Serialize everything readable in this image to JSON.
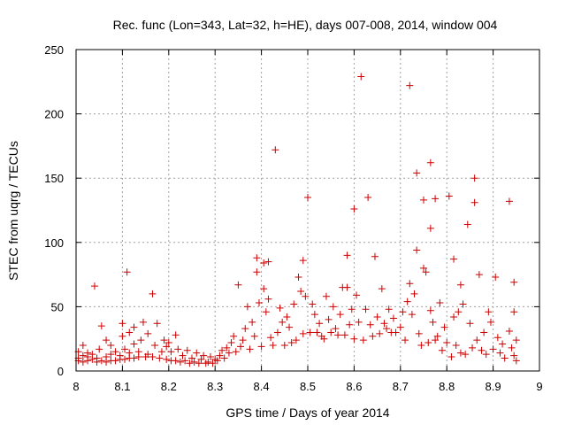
{
  "chart_data": {
    "type": "scatter",
    "title": "Rec. func (Lon=343, Lat=32, h=HE), days 007-008, 2014, window 004",
    "xlabel": "GPS time / Days of year 2014",
    "ylabel": "STEC from uqrg / TECUs",
    "xlim": [
      8.0,
      9.0
    ],
    "ylim": [
      0,
      250
    ],
    "xticks": [
      "8",
      "8.1",
      "8.2",
      "8.3",
      "8.4",
      "8.5",
      "8.6",
      "8.7",
      "8.8",
      "8.9",
      "9"
    ],
    "yticks": [
      "0",
      "50",
      "100",
      "150",
      "200",
      "250"
    ],
    "grid": true,
    "marker": "plus",
    "series_color": "#cc0000",
    "points": [
      [
        8.005,
        8
      ],
      [
        8.005,
        10
      ],
      [
        8.005,
        15
      ],
      [
        8.015,
        7
      ],
      [
        8.015,
        12
      ],
      [
        8.015,
        20
      ],
      [
        8.025,
        8
      ],
      [
        8.025,
        11
      ],
      [
        8.025,
        14
      ],
      [
        8.035,
        9
      ],
      [
        8.035,
        13
      ],
      [
        8.04,
        66
      ],
      [
        8.045,
        7
      ],
      [
        8.045,
        10
      ],
      [
        8.05,
        17
      ],
      [
        8.055,
        8
      ],
      [
        8.055,
        35
      ],
      [
        8.065,
        7
      ],
      [
        8.065,
        11
      ],
      [
        8.065,
        24
      ],
      [
        8.075,
        8
      ],
      [
        8.075,
        13
      ],
      [
        8.075,
        20
      ],
      [
        8.085,
        8
      ],
      [
        8.085,
        15
      ],
      [
        8.095,
        9
      ],
      [
        8.095,
        12
      ],
      [
        8.1,
        27
      ],
      [
        8.1,
        37
      ],
      [
        8.105,
        9
      ],
      [
        8.105,
        17
      ],
      [
        8.11,
        77
      ],
      [
        8.115,
        10
      ],
      [
        8.115,
        14
      ],
      [
        8.115,
        30
      ],
      [
        8.125,
        10
      ],
      [
        8.125,
        21
      ],
      [
        8.125,
        34
      ],
      [
        8.135,
        11
      ],
      [
        8.135,
        15
      ],
      [
        8.14,
        24
      ],
      [
        8.145,
        38
      ],
      [
        8.15,
        11
      ],
      [
        8.155,
        13
      ],
      [
        8.155,
        29
      ],
      [
        8.165,
        60
      ],
      [
        8.165,
        11
      ],
      [
        8.17,
        20
      ],
      [
        8.175,
        37
      ],
      [
        8.18,
        10
      ],
      [
        8.185,
        15
      ],
      [
        8.19,
        24
      ],
      [
        8.195,
        9
      ],
      [
        8.195,
        19
      ],
      [
        8.2,
        22
      ],
      [
        8.205,
        8
      ],
      [
        8.205,
        15
      ],
      [
        8.215,
        8
      ],
      [
        8.215,
        28
      ],
      [
        8.22,
        17
      ],
      [
        8.225,
        7
      ],
      [
        8.23,
        12
      ],
      [
        8.235,
        8
      ],
      [
        8.24,
        16
      ],
      [
        8.245,
        6
      ],
      [
        8.25,
        10
      ],
      [
        8.255,
        7
      ],
      [
        8.26,
        14
      ],
      [
        8.265,
        6
      ],
      [
        8.27,
        9
      ],
      [
        8.275,
        12
      ],
      [
        8.28,
        6
      ],
      [
        8.285,
        7
      ],
      [
        8.29,
        11
      ],
      [
        8.295,
        6
      ],
      [
        8.3,
        9
      ],
      [
        8.305,
        8
      ],
      [
        8.31,
        12
      ],
      [
        8.315,
        16
      ],
      [
        8.32,
        10
      ],
      [
        8.325,
        18
      ],
      [
        8.33,
        14
      ],
      [
        8.335,
        22
      ],
      [
        8.34,
        27
      ],
      [
        8.345,
        15
      ],
      [
        8.35,
        67
      ],
      [
        8.355,
        19
      ],
      [
        8.36,
        24
      ],
      [
        8.365,
        33
      ],
      [
        8.37,
        50
      ],
      [
        8.375,
        17
      ],
      [
        8.38,
        38
      ],
      [
        8.385,
        27
      ],
      [
        8.39,
        77
      ],
      [
        8.39,
        88
      ],
      [
        8.395,
        53
      ],
      [
        8.4,
        19
      ],
      [
        8.405,
        64
      ],
      [
        8.405,
        84
      ],
      [
        8.41,
        46
      ],
      [
        8.415,
        85
      ],
      [
        8.415,
        56
      ],
      [
        8.42,
        26
      ],
      [
        8.425,
        20
      ],
      [
        8.43,
        172
      ],
      [
        8.435,
        30
      ],
      [
        8.44,
        49
      ],
      [
        8.445,
        38
      ],
      [
        8.45,
        20
      ],
      [
        8.455,
        42
      ],
      [
        8.46,
        34
      ],
      [
        8.465,
        22
      ],
      [
        8.47,
        52
      ],
      [
        8.475,
        24
      ],
      [
        8.48,
        73
      ],
      [
        8.485,
        62
      ],
      [
        8.49,
        86
      ],
      [
        8.49,
        29
      ],
      [
        8.495,
        58
      ],
      [
        8.5,
        135
      ],
      [
        8.505,
        30
      ],
      [
        8.51,
        52
      ],
      [
        8.515,
        44
      ],
      [
        8.52,
        30
      ],
      [
        8.525,
        37
      ],
      [
        8.53,
        27
      ],
      [
        8.535,
        25
      ],
      [
        8.54,
        58
      ],
      [
        8.545,
        40
      ],
      [
        8.55,
        30
      ],
      [
        8.555,
        50
      ],
      [
        8.56,
        33
      ],
      [
        8.565,
        28
      ],
      [
        8.57,
        44
      ],
      [
        8.575,
        65
      ],
      [
        8.58,
        28
      ],
      [
        8.585,
        90
      ],
      [
        8.585,
        65
      ],
      [
        8.59,
        36
      ],
      [
        8.595,
        48
      ],
      [
        8.6,
        25
      ],
      [
        8.6,
        126
      ],
      [
        8.605,
        59
      ],
      [
        8.61,
        38
      ],
      [
        8.615,
        229
      ],
      [
        8.62,
        24
      ],
      [
        8.625,
        48
      ],
      [
        8.63,
        135
      ],
      [
        8.635,
        36
      ],
      [
        8.64,
        27
      ],
      [
        8.645,
        89
      ],
      [
        8.65,
        42
      ],
      [
        8.655,
        29
      ],
      [
        8.66,
        64
      ],
      [
        8.665,
        37
      ],
      [
        8.67,
        33
      ],
      [
        8.675,
        48
      ],
      [
        8.68,
        30
      ],
      [
        8.685,
        41
      ],
      [
        8.69,
        30
      ],
      [
        8.7,
        34
      ],
      [
        8.705,
        46
      ],
      [
        8.71,
        24
      ],
      [
        8.715,
        54
      ],
      [
        8.72,
        222
      ],
      [
        8.72,
        68
      ],
      [
        8.725,
        44
      ],
      [
        8.73,
        60
      ],
      [
        8.735,
        154
      ],
      [
        8.735,
        94
      ],
      [
        8.74,
        29
      ],
      [
        8.745,
        20
      ],
      [
        8.75,
        80
      ],
      [
        8.75,
        133
      ],
      [
        8.755,
        77
      ],
      [
        8.76,
        22
      ],
      [
        8.765,
        47
      ],
      [
        8.765,
        162
      ],
      [
        8.765,
        111
      ],
      [
        8.77,
        38
      ],
      [
        8.775,
        134
      ],
      [
        8.775,
        24
      ],
      [
        8.78,
        27
      ],
      [
        8.785,
        53
      ],
      [
        8.79,
        16
      ],
      [
        8.795,
        34
      ],
      [
        8.8,
        22
      ],
      [
        8.805,
        136
      ],
      [
        8.81,
        11
      ],
      [
        8.815,
        42
      ],
      [
        8.815,
        87
      ],
      [
        8.82,
        20
      ],
      [
        8.825,
        46
      ],
      [
        8.83,
        67
      ],
      [
        8.83,
        14
      ],
      [
        8.835,
        52
      ],
      [
        8.84,
        13
      ],
      [
        8.845,
        114
      ],
      [
        8.85,
        37
      ],
      [
        8.855,
        18
      ],
      [
        8.86,
        150
      ],
      [
        8.86,
        131
      ],
      [
        8.865,
        24
      ],
      [
        8.87,
        75
      ],
      [
        8.875,
        16
      ],
      [
        8.88,
        30
      ],
      [
        8.885,
        13
      ],
      [
        8.89,
        46
      ],
      [
        8.895,
        38
      ],
      [
        8.9,
        17
      ],
      [
        8.905,
        73
      ],
      [
        8.91,
        26
      ],
      [
        8.915,
        14
      ],
      [
        8.92,
        21
      ],
      [
        8.925,
        10
      ],
      [
        8.935,
        132
      ],
      [
        8.935,
        31
      ],
      [
        8.94,
        18
      ],
      [
        8.945,
        46
      ],
      [
        8.945,
        69
      ],
      [
        8.945,
        12
      ],
      [
        8.95,
        24
      ],
      [
        8.95,
        8
      ]
    ]
  }
}
